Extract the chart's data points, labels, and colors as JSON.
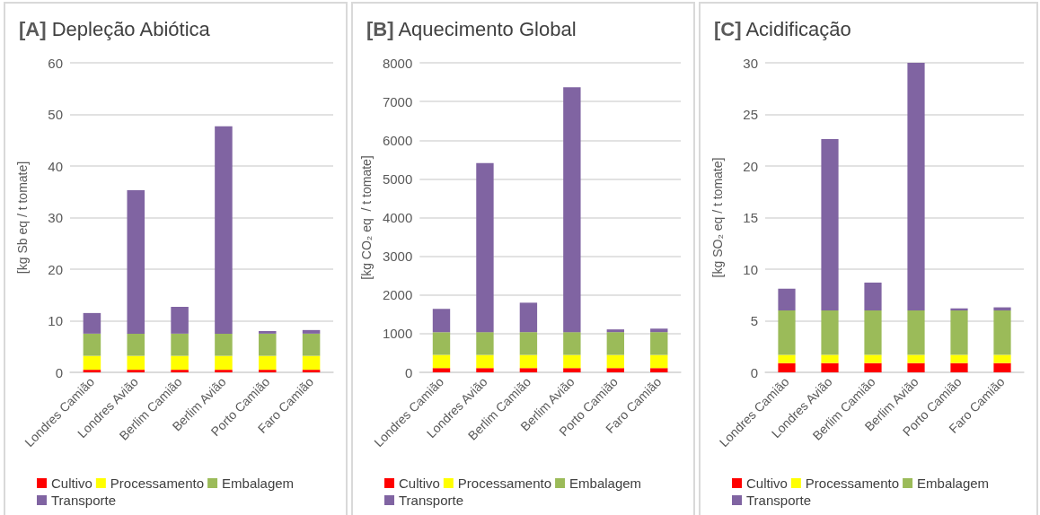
{
  "chart_data": [
    {
      "type": "bar",
      "title": "[A] Depleção Abiótica",
      "ylabel": "[kg Sb eq / t tomate]",
      "stacked": true,
      "grid": "y",
      "legend": "bottom",
      "categories": [
        "Londres Camião",
        "Londres Avião",
        "Berlim Camião",
        "Berlim Avião",
        "Porto Camião",
        "Faro Camião"
      ],
      "series": [
        {
          "name": "Cultivo",
          "color": "#ff0000",
          "values": [
            0.5,
            0.5,
            0.5,
            0.5,
            0.5,
            0.5
          ]
        },
        {
          "name": "Processamento",
          "color": "#ffff00",
          "values": [
            2.7,
            2.7,
            2.7,
            2.7,
            2.7,
            2.7
          ]
        },
        {
          "name": "Embalagem",
          "color": "#9bbb59",
          "values": [
            4.3,
            4.3,
            4.3,
            4.3,
            4.3,
            4.3
          ]
        },
        {
          "name": "Transporte",
          "color": "#8064a2",
          "values": [
            4.0,
            27.8,
            5.2,
            40.2,
            0.5,
            0.7
          ]
        }
      ],
      "ylim": [
        0,
        60
      ],
      "yticks": [
        0,
        10,
        20,
        30,
        40,
        50,
        60
      ]
    },
    {
      "type": "bar",
      "title": "[B] Aquecimento Global",
      "ylabel": "[kg CO₂ eq  / t tomate]",
      "stacked": true,
      "grid": "y",
      "legend": "bottom",
      "categories": [
        "Londres Camião",
        "Londres Avião",
        "Berlim Camião",
        "Berlim Avião",
        "Porto Camião",
        "Faro Camião"
      ],
      "series": [
        {
          "name": "Cultivo",
          "color": "#ff0000",
          "values": [
            110,
            110,
            110,
            110,
            110,
            110
          ]
        },
        {
          "name": "Processamento",
          "color": "#ffff00",
          "values": [
            340,
            340,
            340,
            340,
            340,
            340
          ]
        },
        {
          "name": "Embalagem",
          "color": "#9bbb59",
          "values": [
            590,
            590,
            590,
            590,
            590,
            590
          ]
        },
        {
          "name": "Transporte",
          "color": "#8064a2",
          "values": [
            600,
            4370,
            760,
            6330,
            70,
            90
          ]
        }
      ],
      "ylim": [
        0,
        8000
      ],
      "yticks": [
        0,
        1000,
        2000,
        3000,
        4000,
        5000,
        6000,
        7000,
        8000
      ]
    },
    {
      "type": "bar",
      "title": "[C] Acidificação",
      "ylabel": "[kg SO₂ eq / t tomate]",
      "stacked": true,
      "grid": "y",
      "legend": "bottom",
      "categories": [
        "Londres Camião",
        "Londres Avião",
        "Berlim Camião",
        "Berlim Avião",
        "Porto Camião",
        "Faro Camião"
      ],
      "series": [
        {
          "name": "Cultivo",
          "color": "#ff0000",
          "values": [
            0.9,
            0.9,
            0.9,
            0.9,
            0.9,
            0.9
          ]
        },
        {
          "name": "Processamento",
          "color": "#ffff00",
          "values": [
            0.8,
            0.8,
            0.8,
            0.8,
            0.8,
            0.8
          ]
        },
        {
          "name": "Embalagem",
          "color": "#9bbb59",
          "values": [
            4.3,
            4.3,
            4.3,
            4.3,
            4.3,
            4.3
          ]
        },
        {
          "name": "Transporte",
          "color": "#8064a2",
          "values": [
            2.1,
            16.6,
            2.7,
            24.0,
            0.2,
            0.3
          ]
        }
      ],
      "ylim": [
        0,
        30
      ],
      "yticks": [
        0,
        5,
        10,
        15,
        20,
        25,
        30
      ]
    }
  ]
}
